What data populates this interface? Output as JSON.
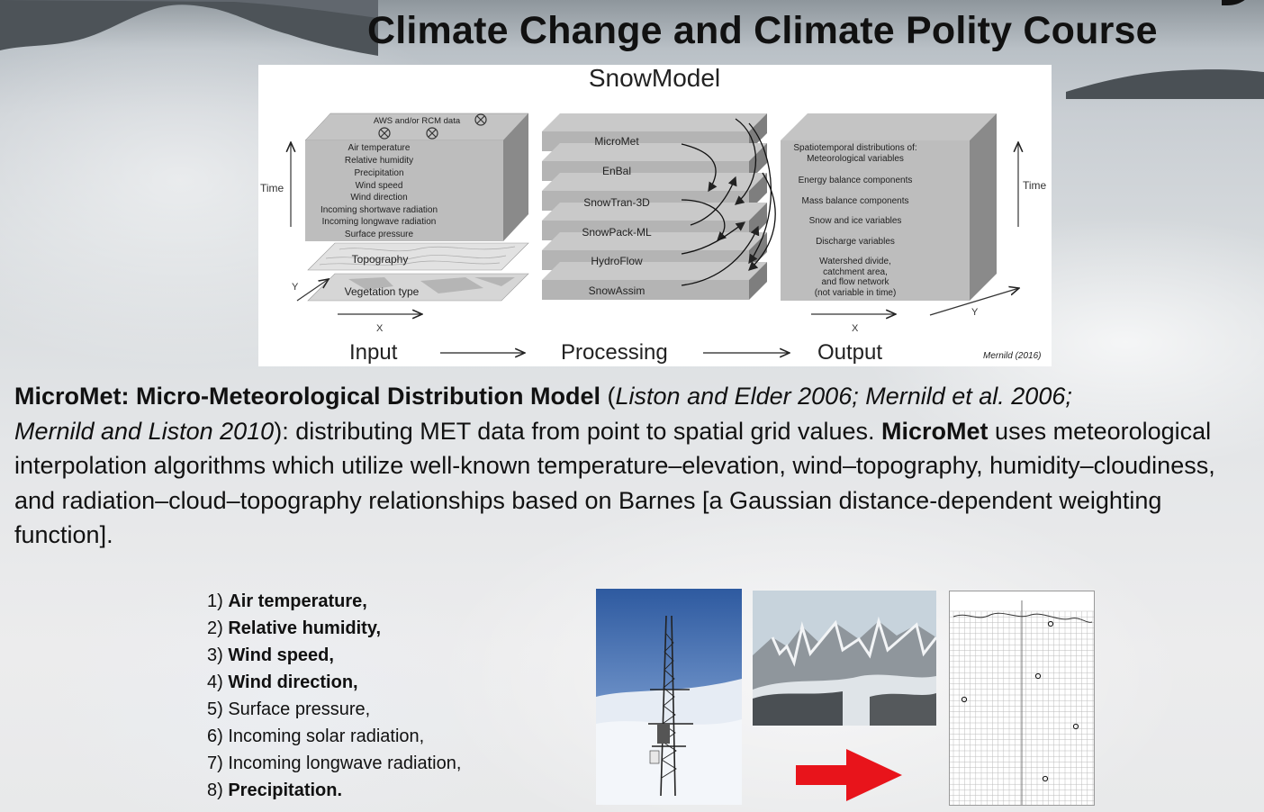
{
  "header": {
    "title": "Climate Change and Climate Polity Course"
  },
  "figure": {
    "title": "SnowModel",
    "credit": "Mernild (2016)",
    "input": {
      "aws_label": "AWS and/or RCM data",
      "variables": [
        "Air temperature",
        "Relative humidity",
        "Precipitation",
        "Wind speed",
        "Wind direction",
        "Incoming shortwave radiation",
        "Incoming longwave radiation",
        "Surface pressure"
      ],
      "topography": "Topography",
      "vegetation": "Vegetation type"
    },
    "processing": {
      "modules": [
        "MicroMet",
        "EnBal",
        "SnowTran-3D",
        "SnowPack-ML",
        "HydroFlow",
        "SnowAssim"
      ]
    },
    "output": {
      "lines": [
        "Spatiotemporal distributions of:",
        "Meteorological variables",
        "Energy balance components",
        "Mass balance components",
        "Snow and ice variables",
        "Discharge variables",
        "Watershed divide,",
        "catchment area,",
        "and flow network",
        "(not variable in time)"
      ]
    },
    "axes": {
      "time": "Time",
      "x": "X",
      "y": "Y"
    },
    "stages": {
      "input": "Input",
      "processing": "Processing",
      "output": "Output"
    }
  },
  "body": {
    "name_bold": "MicroMet: Micro-Meteorological Distribution Model",
    "open_paren": " (",
    "cite_italic_1": "Liston and Elder 2006; Mernild et al. 2006;",
    "cite_italic_2": "Mernild and Liston 2010",
    "text_1": "): distributing MET data from point to spatial grid values.  ",
    "micromet_bold": "MicroMet",
    "text_2": " uses meteorological interpolation algorithms which utilize well-known temperature–elevation, wind–topography, humidity–cloudiness, and radiation–cloud–topography relationships based on Barnes [a Gaussian distance-dependent weighting function]."
  },
  "variables": [
    {
      "num": "1) ",
      "label": "Air temperature,",
      "bold": true
    },
    {
      "num": "2) ",
      "label": "Relative humidity,",
      "bold": true
    },
    {
      "num": "3) ",
      "label": "Wind speed,",
      "bold": true
    },
    {
      "num": "4) ",
      "label": "Wind direction,",
      "bold": true
    },
    {
      "num": "5) ",
      "label": "Surface pressure,",
      "bold": false
    },
    {
      "num": "6) ",
      "label": "Incoming solar radiation,",
      "bold": false
    },
    {
      "num": "7) ",
      "label": "Incoming longwave radiation,",
      "bold": false
    },
    {
      "num": "8) ",
      "label": "Precipitation.",
      "bold": true
    }
  ],
  "colors": {
    "accent_arrow": "#e8141b"
  }
}
